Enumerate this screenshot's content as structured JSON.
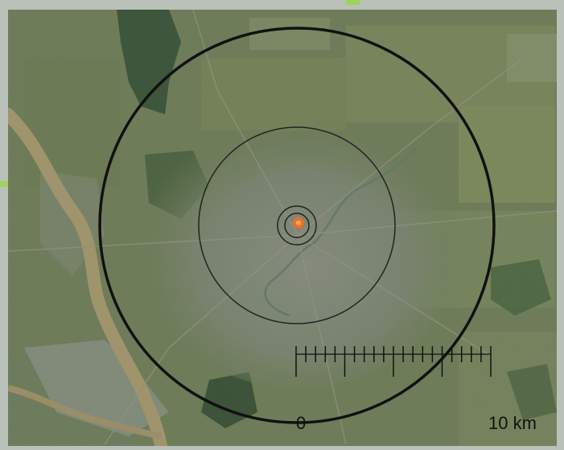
{
  "map": {
    "center_marker": "orange-dot",
    "rings": [
      "outer",
      "middle",
      "inner",
      "innermost"
    ]
  },
  "scale_bar": {
    "start_label": "0",
    "end_label": "10 km",
    "minor_ticks": 20
  },
  "colors": {
    "terrain": "#6f7d5a",
    "urban": "#8b8f87",
    "river": "#b69f72",
    "marker": "#ff6b1a",
    "ring": "#111111"
  }
}
